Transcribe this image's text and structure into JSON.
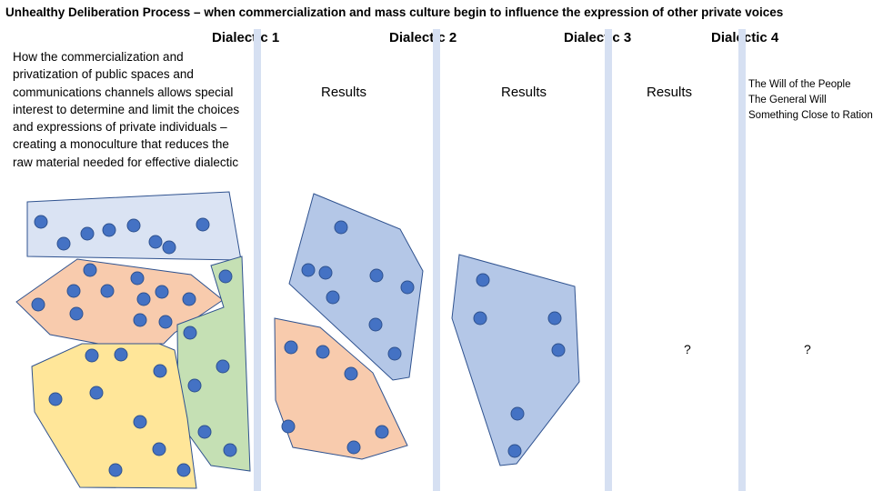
{
  "title": "Unhealthy Deliberation Process – when commercialization and mass culture begin to influence the expression of other private voices",
  "dialectics": [
    {
      "label": "Dialectic  1"
    },
    {
      "label": "Dialectic  2"
    },
    {
      "label": "Dialectic  3"
    },
    {
      "label": "Dialectic  4"
    }
  ],
  "description": "How the commercialization and privatization of public spaces and communications channels allows special interest to determine and limit the choices and expressions of private individuals – creating a monoculture that reduces the raw material needed for effective dialectic",
  "results": [
    "Results",
    "Results",
    "Results"
  ],
  "unknown": [
    "?",
    "?"
  ],
  "outcomes": [
    "The Will of the People",
    "The General Will",
    "Something Close to Rationality"
  ],
  "colors": {
    "divider": "#d6e0f2",
    "dot": "#4472c4",
    "dot_stroke": "#2f528f",
    "group_blue_light": "#dae3f3",
    "group_orange": "#f8cbad",
    "group_green": "#c5e0b4",
    "group_yellow": "#ffe699",
    "group_blue_mid": "#b4c7e7",
    "outline": "#2f528f"
  }
}
